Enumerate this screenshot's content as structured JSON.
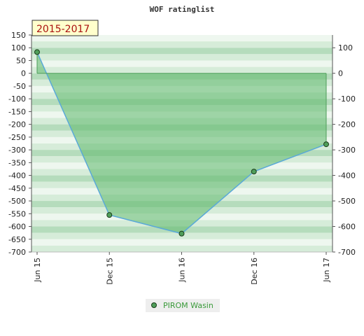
{
  "chart_data": {
    "type": "area",
    "title": "WOF ratinglist",
    "period_label": "2015-2017",
    "categories": [
      "Jun 15",
      "Dec 15",
      "Jun 16",
      "Dec 16",
      "Jun 17"
    ],
    "series": [
      {
        "name": "PIROM Wasin",
        "values": [
          83,
          -555,
          -628,
          -385,
          -278
        ]
      }
    ],
    "ylim": [
      -700,
      150
    ],
    "left_ticks": [
      150,
      100,
      50,
      0,
      -50,
      -100,
      -150,
      -200,
      -250,
      -300,
      -350,
      -400,
      -450,
      -500,
      -550,
      -600,
      -650,
      -700
    ],
    "right_ticks": [
      100,
      0,
      -100,
      -200,
      -300,
      -400,
      -500,
      -600,
      -700
    ],
    "colors": {
      "fill": "#5cb86a",
      "line": "#5aa9d8",
      "marker": "#4f9e5a",
      "band_light": "#eef7ef",
      "band_dark": "#b5dcbc"
    },
    "legend_position": "bottom-center"
  }
}
